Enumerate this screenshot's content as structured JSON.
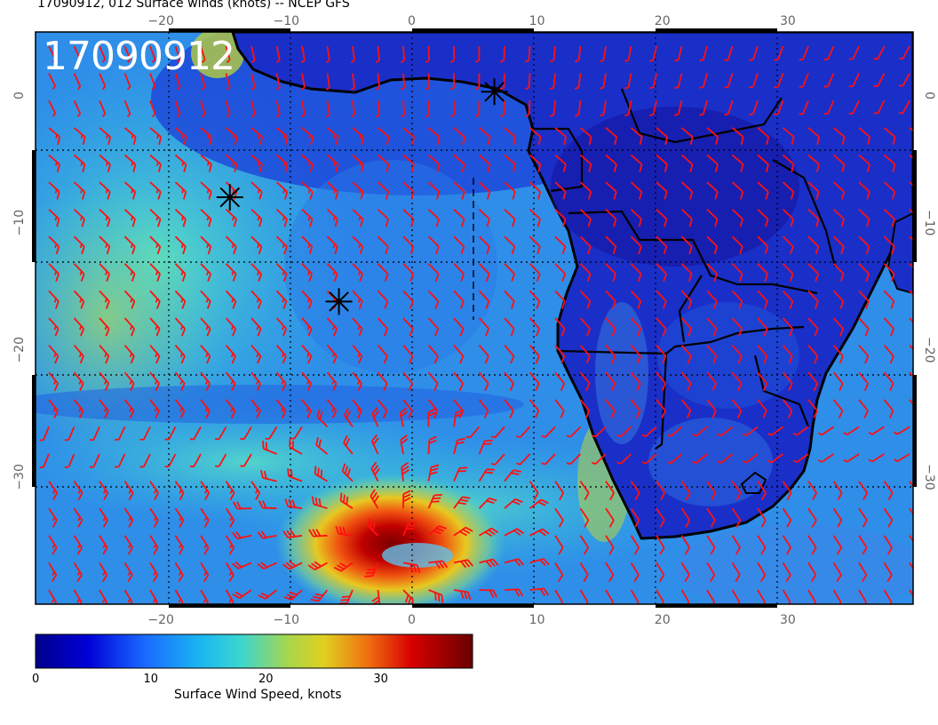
{
  "title": "17090912, 012 Surface winds (knots) -- NCEP GFS",
  "stamp": "17090912",
  "colors": {
    "barb": "#ff1010",
    "coast": "#000000",
    "grid": "#000000"
  },
  "map": {
    "lon_range": [
      -30,
      40
    ],
    "lat_range": [
      -40,
      5
    ],
    "lon_ticks": [
      {
        "value": -20,
        "label": "−20"
      },
      {
        "value": -10,
        "label": "−10"
      },
      {
        "value": 0,
        "label": "0"
      },
      {
        "value": 10,
        "label": "10"
      },
      {
        "value": 20,
        "label": "20"
      },
      {
        "value": 30,
        "label": "30"
      }
    ],
    "lat_ticks": [
      {
        "value": 0,
        "label": "0"
      },
      {
        "value": -10,
        "label": "−10"
      },
      {
        "value": -20,
        "label": "−20"
      },
      {
        "value": -30,
        "label": "−30"
      }
    ],
    "markers": [
      {
        "lon": 6.6,
        "lat": 0.3
      },
      {
        "lon": -14.5,
        "lat": -8.0
      },
      {
        "lon": -5.8,
        "lat": -16.2
      }
    ],
    "cyclone_center": {
      "lon": -2.0,
      "lat": -36.0
    }
  },
  "colorbar": {
    "label": "Surface Wind Speed, knots",
    "range": [
      0,
      38
    ],
    "ticks": [
      {
        "value": 0,
        "label": "0"
      },
      {
        "value": 10,
        "label": "10"
      },
      {
        "value": 20,
        "label": "20"
      },
      {
        "value": 30,
        "label": "30"
      }
    ]
  }
}
